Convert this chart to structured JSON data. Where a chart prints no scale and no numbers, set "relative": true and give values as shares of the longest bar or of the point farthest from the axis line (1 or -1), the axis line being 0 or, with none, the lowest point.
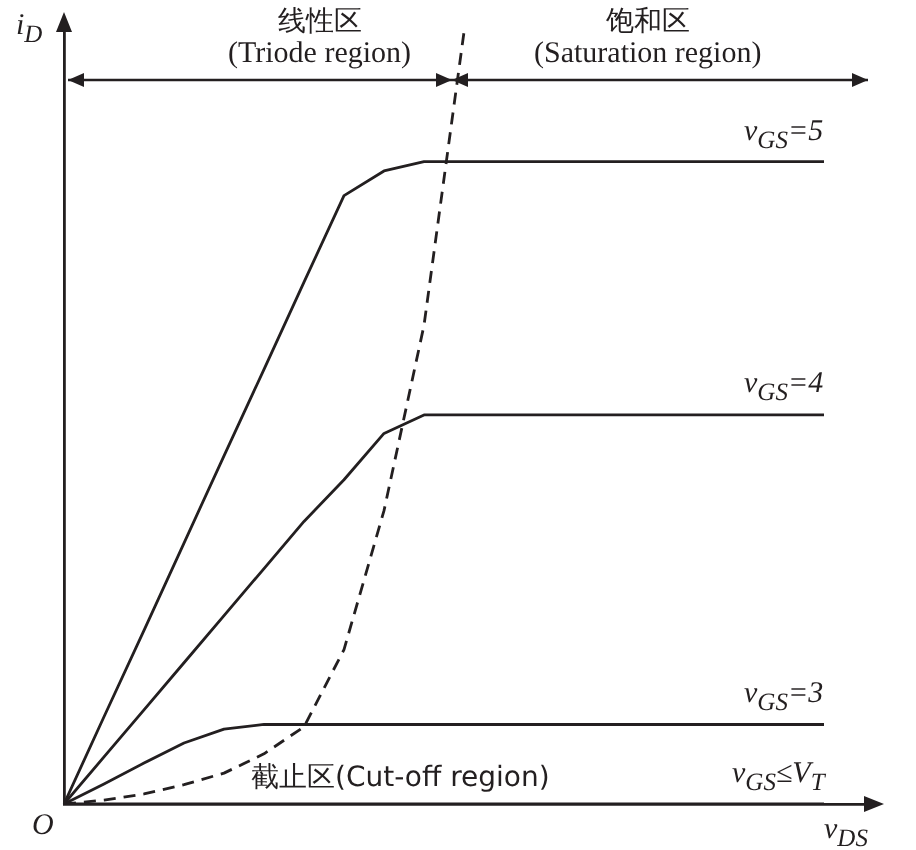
{
  "chart_data": {
    "type": "line",
    "relative": true,
    "xlabel": "v$_{DS}$",
    "ylabel": "i$_{D}$",
    "tick_labels": false,
    "grid": false,
    "legend": false,
    "marker": "none",
    "categories": [
      null,
      null,
      null,
      null,
      null,
      null,
      null,
      null,
      null,
      null,
      null,
      null,
      null,
      null,
      null,
      null,
      null,
      null,
      null,
      null,
      null
    ],
    "series": [
      {
        "name": "v$_{GS}$=5",
        "color": "#231f20",
        "values": [
          0,
          0.113,
          0.225,
          0.338,
          0.451,
          0.563,
          0.676,
          0.788,
          0.82,
          0.832,
          0.832,
          0.832,
          0.832,
          0.832,
          0.832,
          0.832,
          0.832,
          0.832,
          0.832,
          0.832,
          null
        ]
      },
      {
        "name": "v$_{GS}$=4",
        "color": "#231f20",
        "values": [
          0,
          0.061,
          0.122,
          0.183,
          0.244,
          0.305,
          0.366,
          0.42,
          0.48,
          0.504,
          0.504,
          0.504,
          0.504,
          0.504,
          0.504,
          0.504,
          0.504,
          0.504,
          0.504,
          0.504,
          null
        ]
      },
      {
        "name": "v$_{GS}$=3",
        "color": "#231f20",
        "values": [
          0,
          0.026,
          0.053,
          0.079,
          0.097,
          0.103,
          0.103,
          0.103,
          0.103,
          0.103,
          0.103,
          0.103,
          0.103,
          0.103,
          0.103,
          0.103,
          0.103,
          0.103,
          0.103,
          0.103,
          null
        ]
      },
      {
        "name": "v$_{GS}$≤V$_{T}$",
        "color": "#231f20",
        "values": [
          0,
          0,
          0,
          0,
          0,
          0,
          0,
          0,
          0,
          0,
          0,
          0,
          0,
          0,
          0,
          0,
          0,
          0,
          0,
          0,
          null
        ]
      },
      {
        "color": "#231f20",
        "line_style": "dashed",
        "values": [
          0,
          0.005,
          0.013,
          0.025,
          0.04,
          0.065,
          0.1,
          0.2,
          0.38,
          0.62,
          1,
          null,
          null,
          null,
          null,
          null,
          null,
          null,
          null,
          null,
          null
        ]
      }
    ],
    "annotations": [
      "线性区",
      "(Triode region)",
      "饱和区",
      "(Saturation region)",
      "截止区(Cut-off region)",
      "O"
    ]
  }
}
